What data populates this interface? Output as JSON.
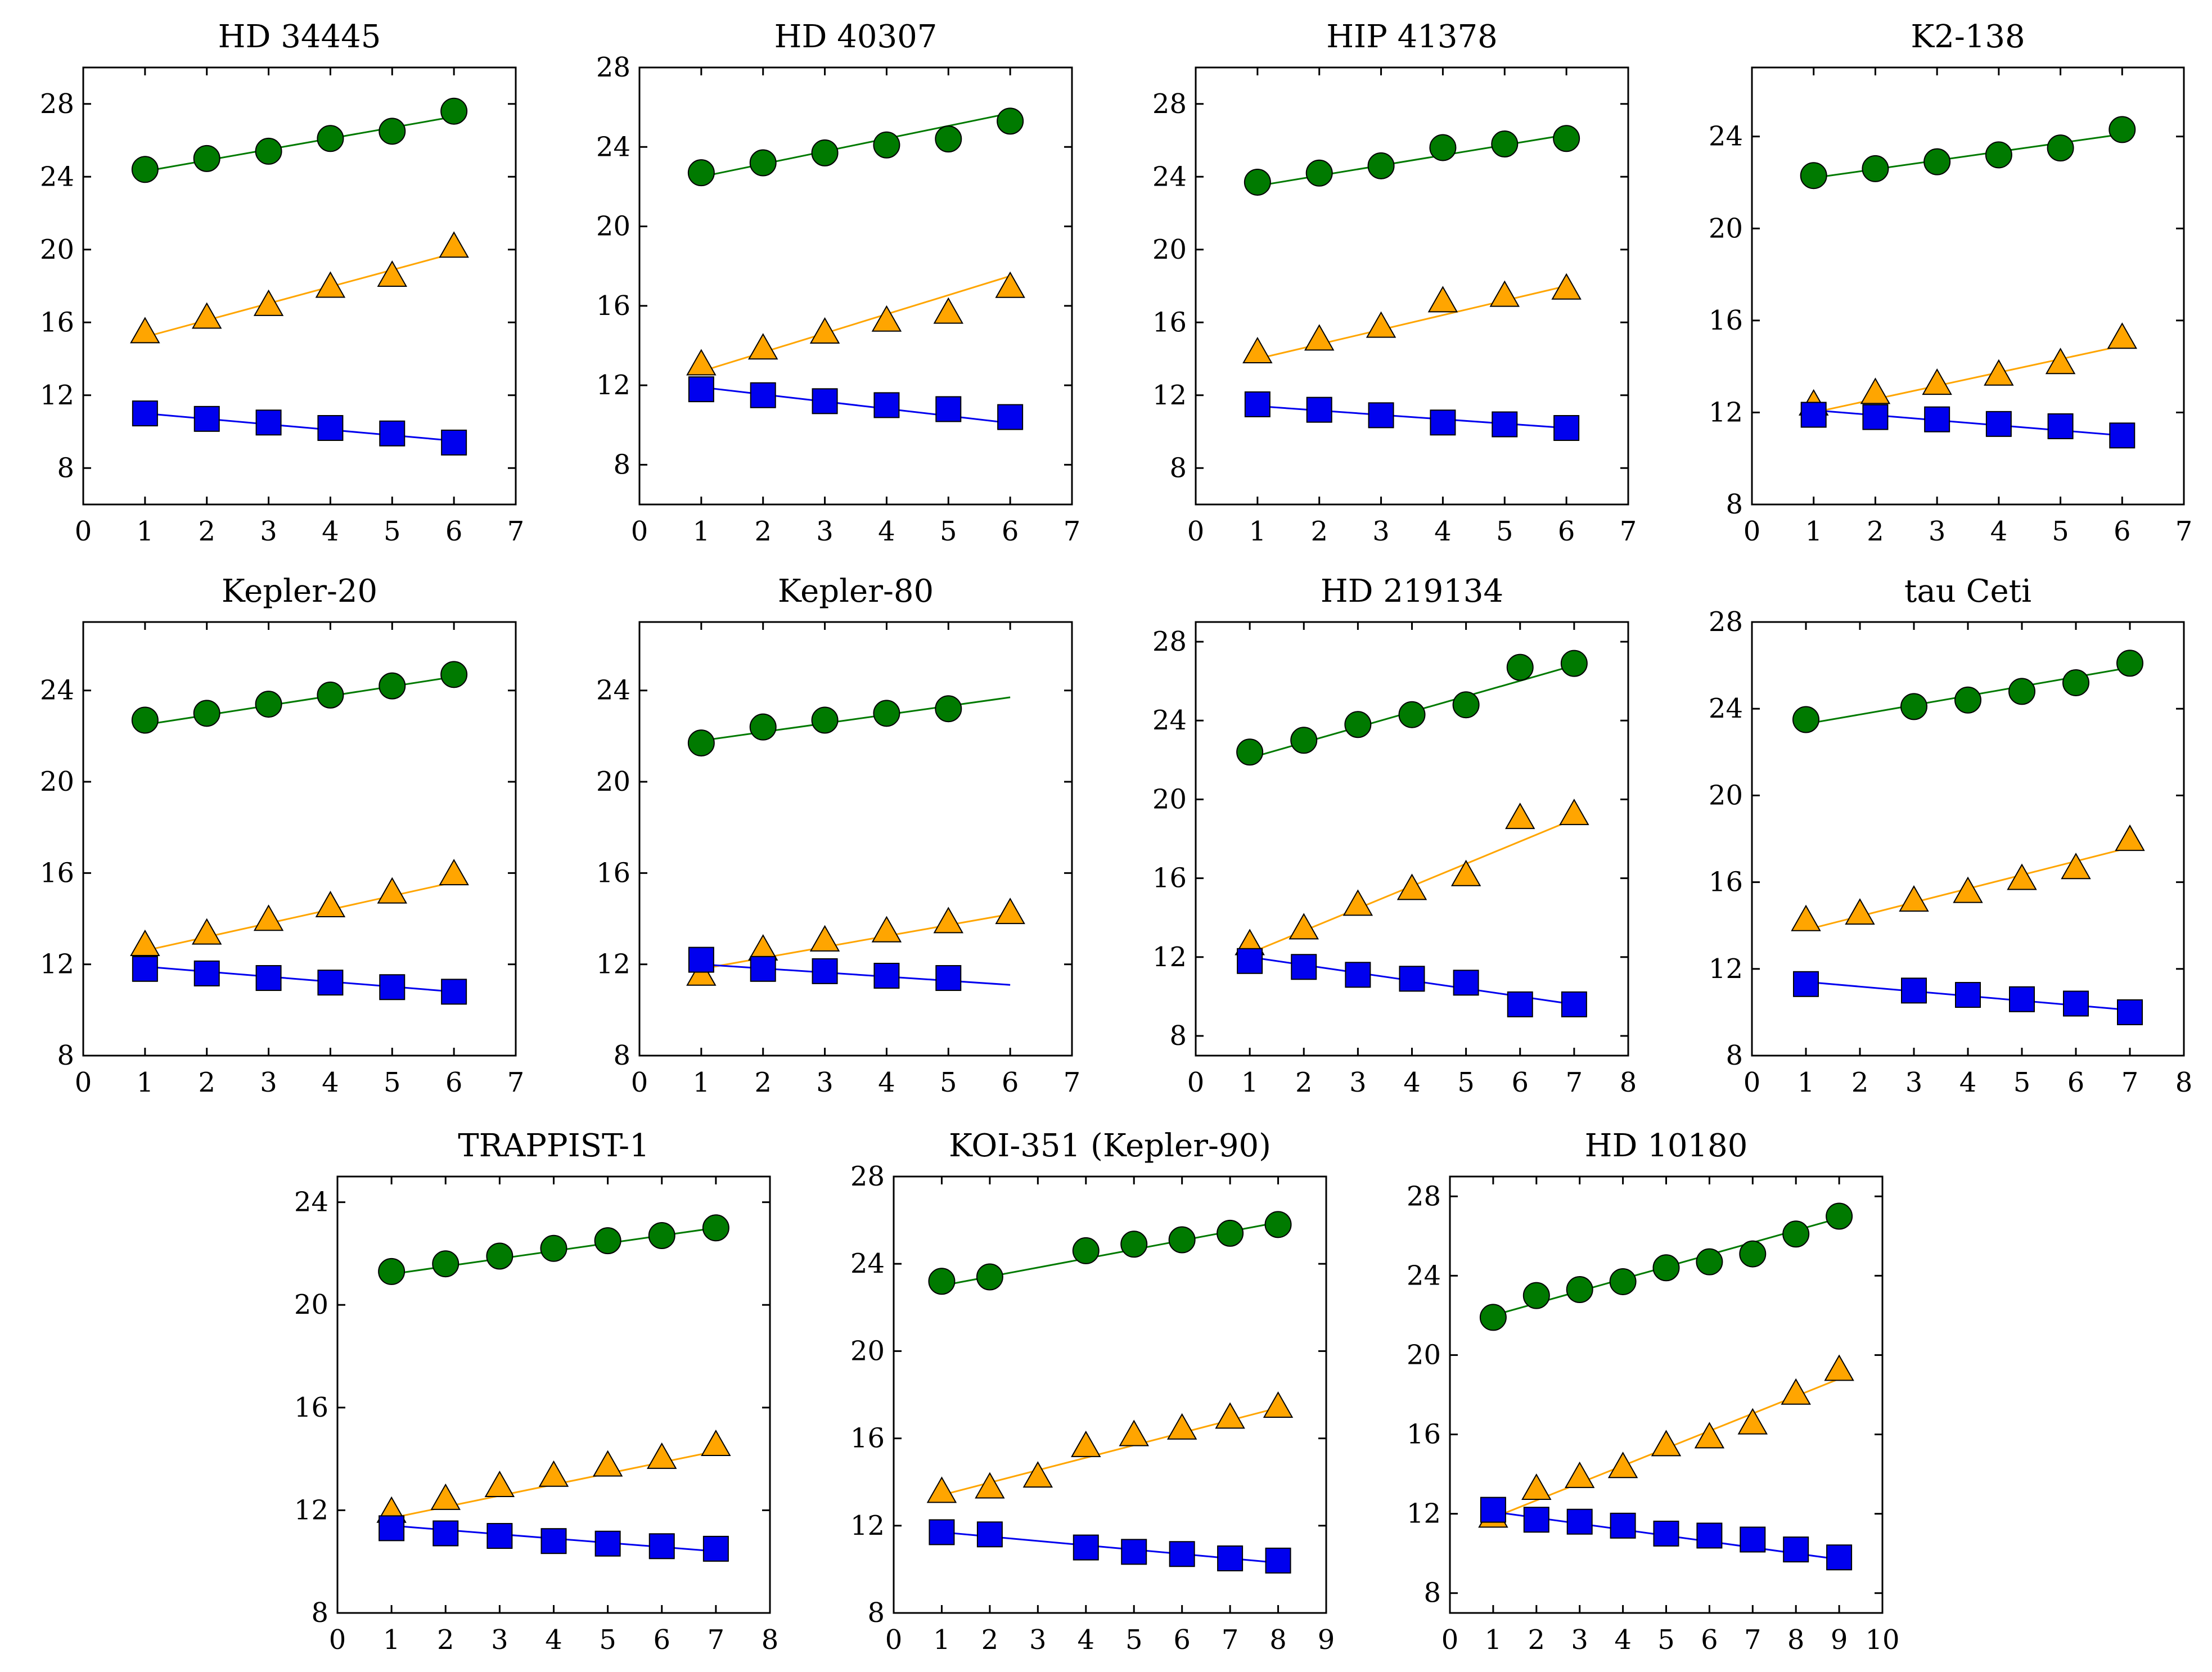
{
  "figure": {
    "colors": {
      "green": "#007a00",
      "orange": "#ffa500",
      "blue": "#0000ee",
      "marker_edge": "#000000",
      "frame": "#000000"
    },
    "marker_shapes": {
      "green": "circle",
      "orange": "triangle",
      "blue": "square"
    }
  },
  "chart_data": [
    {
      "type": "scatter",
      "title": "HD 34445",
      "xlim": [
        0,
        7
      ],
      "ylim": [
        6,
        30
      ],
      "xticks": [
        0,
        1,
        2,
        3,
        4,
        5,
        6,
        7
      ],
      "yticks": [
        8,
        12,
        16,
        20,
        24,
        28
      ],
      "fit_x": [
        1,
        6
      ],
      "series": [
        {
          "name": "green",
          "x": [
            1,
            2,
            3,
            4,
            5,
            6
          ],
          "y": [
            24.4,
            25.0,
            25.4,
            26.1,
            26.5,
            27.6
          ],
          "fit": [
            24.3,
            27.3
          ]
        },
        {
          "name": "orange",
          "x": [
            1,
            2,
            3,
            4,
            5,
            6
          ],
          "y": [
            15.4,
            16.2,
            16.9,
            17.9,
            18.5,
            20.1
          ],
          "fit": [
            15.2,
            19.8
          ]
        },
        {
          "name": "blue",
          "x": [
            1,
            2,
            3,
            4,
            5,
            6
          ],
          "y": [
            11.0,
            10.7,
            10.5,
            10.2,
            9.9,
            9.4
          ],
          "fit": [
            11.0,
            9.5
          ]
        }
      ]
    },
    {
      "type": "scatter",
      "title": "HD 40307",
      "xlim": [
        0,
        7
      ],
      "ylim": [
        6,
        28
      ],
      "xticks": [
        0,
        1,
        2,
        3,
        4,
        5,
        6,
        7
      ],
      "yticks": [
        8,
        12,
        16,
        20,
        24,
        28
      ],
      "fit_x": [
        1,
        6
      ],
      "series": [
        {
          "name": "green",
          "x": [
            1,
            2,
            3,
            4,
            5,
            6
          ],
          "y": [
            22.7,
            23.2,
            23.7,
            24.1,
            24.4,
            25.3
          ],
          "fit": [
            22.5,
            25.7
          ]
        },
        {
          "name": "orange",
          "x": [
            1,
            2,
            3,
            4,
            5,
            6
          ],
          "y": [
            13.0,
            13.8,
            14.6,
            15.2,
            15.6,
            16.9
          ],
          "fit": [
            12.7,
            17.5
          ]
        },
        {
          "name": "blue",
          "x": [
            1,
            2,
            3,
            4,
            5,
            6
          ],
          "y": [
            11.8,
            11.5,
            11.2,
            11.0,
            10.8,
            10.4
          ],
          "fit": [
            11.9,
            10.1
          ]
        }
      ]
    },
    {
      "type": "scatter",
      "title": "HIP 41378",
      "xlim": [
        0,
        7
      ],
      "ylim": [
        6,
        30
      ],
      "xticks": [
        0,
        1,
        2,
        3,
        4,
        5,
        6,
        7
      ],
      "yticks": [
        8,
        12,
        16,
        20,
        24,
        28
      ],
      "fit_x": [
        1,
        6
      ],
      "series": [
        {
          "name": "green",
          "x": [
            1,
            2,
            3,
            4,
            5,
            6
          ],
          "y": [
            23.7,
            24.2,
            24.6,
            25.6,
            25.8,
            26.1
          ],
          "fit": [
            23.5,
            26.3
          ]
        },
        {
          "name": "orange",
          "x": [
            1,
            2,
            3,
            4,
            5,
            6
          ],
          "y": [
            14.3,
            15.0,
            15.7,
            17.1,
            17.4,
            17.8
          ],
          "fit": [
            14.0,
            18.0
          ]
        },
        {
          "name": "blue",
          "x": [
            1,
            2,
            3,
            4,
            5,
            6
          ],
          "y": [
            11.5,
            11.2,
            10.9,
            10.5,
            10.4,
            10.2
          ],
          "fit": [
            11.4,
            10.2
          ]
        }
      ]
    },
    {
      "type": "scatter",
      "title": "K2-138",
      "xlim": [
        0,
        7
      ],
      "ylim": [
        8,
        27
      ],
      "xticks": [
        0,
        1,
        2,
        3,
        4,
        5,
        6,
        7
      ],
      "yticks": [
        8,
        12,
        16,
        20,
        24
      ],
      "fit_x": [
        1,
        6
      ],
      "series": [
        {
          "name": "green",
          "x": [
            1,
            2,
            3,
            4,
            5,
            6
          ],
          "y": [
            22.3,
            22.6,
            22.9,
            23.2,
            23.5,
            24.3
          ],
          "fit": [
            22.2,
            24.1
          ]
        },
        {
          "name": "orange",
          "x": [
            1,
            2,
            3,
            4,
            5,
            6
          ],
          "y": [
            12.3,
            12.8,
            13.2,
            13.6,
            14.1,
            15.2
          ],
          "fit": [
            12.0,
            14.9
          ]
        },
        {
          "name": "blue",
          "x": [
            1,
            2,
            3,
            4,
            5,
            6
          ],
          "y": [
            11.9,
            11.8,
            11.7,
            11.5,
            11.4,
            11.0
          ],
          "fit": [
            12.1,
            11.0
          ]
        }
      ]
    },
    {
      "type": "scatter",
      "title": "Kepler-20",
      "xlim": [
        0,
        7
      ],
      "ylim": [
        8,
        27
      ],
      "xticks": [
        0,
        1,
        2,
        3,
        4,
        5,
        6,
        7
      ],
      "yticks": [
        8,
        12,
        16,
        20,
        24
      ],
      "fit_x": [
        1,
        6
      ],
      "series": [
        {
          "name": "green",
          "x": [
            1,
            2,
            3,
            4,
            5,
            6
          ],
          "y": [
            22.7,
            23.0,
            23.4,
            23.8,
            24.2,
            24.7
          ],
          "fit": [
            22.5,
            24.6
          ]
        },
        {
          "name": "orange",
          "x": [
            1,
            2,
            3,
            4,
            5,
            6
          ],
          "y": [
            12.8,
            13.3,
            13.9,
            14.5,
            15.1,
            15.9
          ],
          "fit": [
            12.6,
            15.6
          ]
        },
        {
          "name": "blue",
          "x": [
            1,
            2,
            3,
            4,
            5,
            6
          ],
          "y": [
            11.8,
            11.6,
            11.4,
            11.2,
            11.0,
            10.8
          ],
          "fit": [
            11.9,
            10.8
          ]
        }
      ]
    },
    {
      "type": "scatter",
      "title": "Kepler-80",
      "xlim": [
        0,
        7
      ],
      "ylim": [
        8,
        27
      ],
      "xticks": [
        0,
        1,
        2,
        3,
        4,
        5,
        6,
        7
      ],
      "yticks": [
        8,
        12,
        16,
        20,
        24
      ],
      "fit_x": [
        1,
        6
      ],
      "series": [
        {
          "name": "green",
          "x": [
            1,
            2,
            3,
            4,
            5
          ],
          "y": [
            21.7,
            22.4,
            22.7,
            23.0,
            23.2
          ],
          "fit": [
            21.8,
            23.7
          ]
        },
        {
          "name": "orange",
          "x": [
            1,
            2,
            3,
            4,
            5,
            6
          ],
          "y": [
            11.5,
            12.6,
            13.0,
            13.4,
            13.8,
            14.2
          ],
          "fit": [
            11.8,
            14.2
          ]
        },
        {
          "name": "blue",
          "x": [
            1,
            2,
            3,
            4,
            5
          ],
          "y": [
            12.2,
            11.8,
            11.7,
            11.5,
            11.4
          ],
          "fit": [
            12.0,
            11.1
          ]
        }
      ]
    },
    {
      "type": "scatter",
      "title": "HD 219134",
      "xlim": [
        0,
        8
      ],
      "ylim": [
        7,
        29
      ],
      "xticks": [
        0,
        1,
        2,
        3,
        4,
        5,
        6,
        7,
        8
      ],
      "yticks": [
        8,
        12,
        16,
        20,
        24,
        28
      ],
      "fit_x": [
        1,
        7
      ],
      "series": [
        {
          "name": "green",
          "x": [
            1,
            2,
            3,
            4,
            5,
            6,
            7
          ],
          "y": [
            22.4,
            23.0,
            23.8,
            24.3,
            24.8,
            26.7,
            26.9
          ],
          "fit": [
            22.1,
            26.8
          ]
        },
        {
          "name": "orange",
          "x": [
            1,
            2,
            3,
            4,
            5,
            6,
            7
          ],
          "y": [
            12.6,
            13.4,
            14.6,
            15.4,
            16.1,
            19.0,
            19.2
          ],
          "fit": [
            12.2,
            19.0
          ]
        },
        {
          "name": "blue",
          "x": [
            1,
            2,
            3,
            4,
            5,
            6,
            7
          ],
          "y": [
            11.8,
            11.5,
            11.1,
            10.9,
            10.7,
            9.6,
            9.6
          ],
          "fit": [
            12.0,
            9.6
          ]
        }
      ]
    },
    {
      "type": "scatter",
      "title": "tau Ceti",
      "xlim": [
        0,
        8
      ],
      "ylim": [
        8,
        28
      ],
      "xticks": [
        0,
        1,
        2,
        3,
        4,
        5,
        6,
        7,
        8
      ],
      "yticks": [
        8,
        12,
        16,
        20,
        24,
        28
      ],
      "fit_x": [
        1,
        7
      ],
      "series": [
        {
          "name": "green",
          "x": [
            1,
            3,
            4,
            5,
            6,
            7
          ],
          "y": [
            23.5,
            24.1,
            24.4,
            24.8,
            25.2,
            26.1
          ],
          "fit": [
            23.3,
            25.9
          ]
        },
        {
          "name": "orange",
          "x": [
            1,
            2,
            3,
            4,
            5,
            6,
            7
          ],
          "y": [
            14.2,
            14.5,
            15.1,
            15.5,
            16.1,
            16.6,
            17.9
          ],
          "fit": [
            13.8,
            17.6
          ]
        },
        {
          "name": "blue",
          "x": [
            1,
            3,
            4,
            5,
            6,
            7
          ],
          "y": [
            11.3,
            11.0,
            10.8,
            10.6,
            10.4,
            10.0
          ],
          "fit": [
            11.4,
            10.1
          ]
        }
      ]
    },
    {
      "type": "scatter",
      "title": "TRAPPIST-1",
      "xlim": [
        0,
        8
      ],
      "ylim": [
        8,
        25
      ],
      "xticks": [
        0,
        1,
        2,
        3,
        4,
        5,
        6,
        7,
        8
      ],
      "yticks": [
        8,
        12,
        16,
        20,
        24
      ],
      "fit_x": [
        1,
        7
      ],
      "series": [
        {
          "name": "green",
          "x": [
            1,
            2,
            3,
            4,
            5,
            6,
            7
          ],
          "y": [
            21.3,
            21.6,
            21.9,
            22.2,
            22.5,
            22.7,
            23.0
          ],
          "fit": [
            21.2,
            23.0
          ]
        },
        {
          "name": "orange",
          "x": [
            1,
            2,
            3,
            4,
            5,
            6,
            7
          ],
          "y": [
            11.9,
            12.4,
            12.9,
            13.3,
            13.7,
            14.0,
            14.5
          ],
          "fit": [
            11.7,
            14.3
          ]
        },
        {
          "name": "blue",
          "x": [
            1,
            2,
            3,
            4,
            5,
            6,
            7
          ],
          "y": [
            11.3,
            11.1,
            11.0,
            10.8,
            10.7,
            10.6,
            10.5
          ],
          "fit": [
            11.4,
            10.4
          ]
        }
      ]
    },
    {
      "type": "scatter",
      "title": "KOI-351 (Kepler-90)",
      "xlim": [
        0,
        9
      ],
      "ylim": [
        8,
        28
      ],
      "xticks": [
        0,
        1,
        2,
        3,
        4,
        5,
        6,
        7,
        8,
        9
      ],
      "yticks": [
        8,
        12,
        16,
        20,
        24,
        28
      ],
      "fit_x": [
        1,
        8
      ],
      "series": [
        {
          "name": "green",
          "x": [
            1,
            2,
            4,
            5,
            6,
            7,
            8
          ],
          "y": [
            23.2,
            23.4,
            24.6,
            24.9,
            25.1,
            25.4,
            25.8
          ],
          "fit": [
            23.0,
            25.9
          ]
        },
        {
          "name": "orange",
          "x": [
            1,
            2,
            3,
            4,
            5,
            6,
            7,
            8
          ],
          "y": [
            13.5,
            13.7,
            14.2,
            15.6,
            16.1,
            16.4,
            16.9,
            17.4
          ],
          "fit": [
            13.4,
            17.4
          ]
        },
        {
          "name": "blue",
          "x": [
            1,
            2,
            4,
            5,
            6,
            7,
            8
          ],
          "y": [
            11.7,
            11.6,
            11.0,
            10.8,
            10.7,
            10.5,
            10.4
          ],
          "fit": [
            11.7,
            10.3
          ]
        }
      ]
    },
    {
      "type": "scatter",
      "title": "HD 10180",
      "xlim": [
        0,
        10
      ],
      "ylim": [
        7,
        29
      ],
      "xticks": [
        0,
        1,
        2,
        3,
        4,
        5,
        6,
        7,
        8,
        9,
        10
      ],
      "yticks": [
        8,
        12,
        16,
        20,
        24,
        28
      ],
      "fit_x": [
        1,
        9
      ],
      "series": [
        {
          "name": "green",
          "x": [
            1,
            2,
            3,
            4,
            5,
            6,
            7,
            8,
            9
          ],
          "y": [
            21.9,
            23.0,
            23.3,
            23.7,
            24.4,
            24.7,
            25.1,
            26.1,
            27.0
          ],
          "fit": [
            22.0,
            26.9
          ]
        },
        {
          "name": "orange",
          "x": [
            1,
            2,
            3,
            4,
            5,
            6,
            7,
            8,
            9
          ],
          "y": [
            11.8,
            13.2,
            13.8,
            14.3,
            15.4,
            15.8,
            16.5,
            18.0,
            19.2
          ],
          "fit": [
            11.8,
            18.8
          ]
        },
        {
          "name": "blue",
          "x": [
            1,
            2,
            3,
            4,
            5,
            6,
            7,
            8,
            9
          ],
          "y": [
            12.2,
            11.7,
            11.6,
            11.4,
            11.0,
            10.9,
            10.7,
            10.2,
            9.8
          ],
          "fit": [
            12.1,
            9.7
          ]
        }
      ]
    }
  ]
}
